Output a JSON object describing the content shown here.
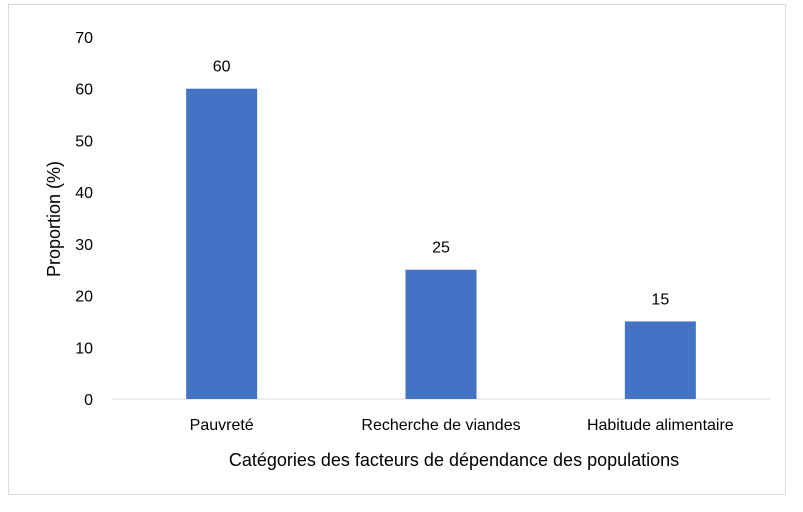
{
  "chart_data": {
    "type": "bar",
    "categories": [
      "Pauvreté",
      "Recherche de viandes",
      "Habitude alimentaire"
    ],
    "values": [
      60,
      25,
      15
    ],
    "data_labels": [
      "60",
      "25",
      "15"
    ],
    "title": "",
    "xlabel": "Catégories des facteurs de dépendance des populations",
    "ylabel": "Proportion (%)",
    "ylim": [
      0,
      70
    ],
    "yticks": [
      "0",
      "10",
      "20",
      "30",
      "40",
      "50",
      "60",
      "70"
    ],
    "grid": false,
    "legend": "none",
    "bar_color": "#4472C4"
  }
}
